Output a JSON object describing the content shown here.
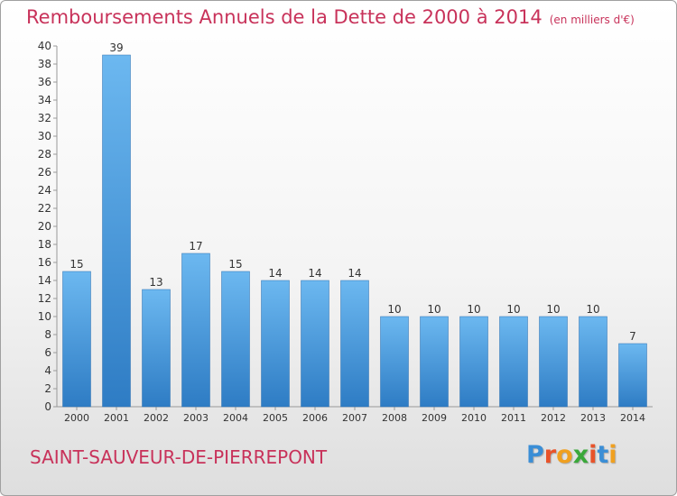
{
  "title": "Remboursements Annuels de la Dette de 2000 à 2014",
  "unit_note": "(en milliers d'€)",
  "commune": "SAINT-SAUVEUR-DE-PIERREPONT",
  "logo": {
    "text": "Proxiti",
    "letters": [
      "P",
      "r",
      "o",
      "x",
      "i",
      "t",
      "i"
    ],
    "colors": [
      "#3a8ed6",
      "#e8532a",
      "#f0a020",
      "#3aa83a",
      "#e8532a",
      "#3a8ed6",
      "#f0a020"
    ]
  },
  "colors": {
    "title": "#c8325a",
    "bar_top": "#6cb8f0",
    "bar_bottom": "#2e7cc4"
  },
  "chart_data": {
    "type": "bar",
    "title": "Remboursements Annuels de la Dette de 2000 à 2014",
    "categories": [
      "2000",
      "2001",
      "2002",
      "2003",
      "2004",
      "2005",
      "2006",
      "2007",
      "2008",
      "2009",
      "2010",
      "2011",
      "2012",
      "2013",
      "2014"
    ],
    "values": [
      15,
      39,
      13,
      17,
      15,
      14,
      14,
      14,
      10,
      10,
      10,
      10,
      10,
      10,
      7
    ],
    "ylim": [
      0,
      40
    ],
    "yticks": [
      0,
      2,
      4,
      6,
      8,
      10,
      12,
      14,
      16,
      18,
      20,
      22,
      24,
      26,
      28,
      30,
      32,
      34,
      36,
      38,
      40
    ],
    "grid": false,
    "legend": "none"
  }
}
